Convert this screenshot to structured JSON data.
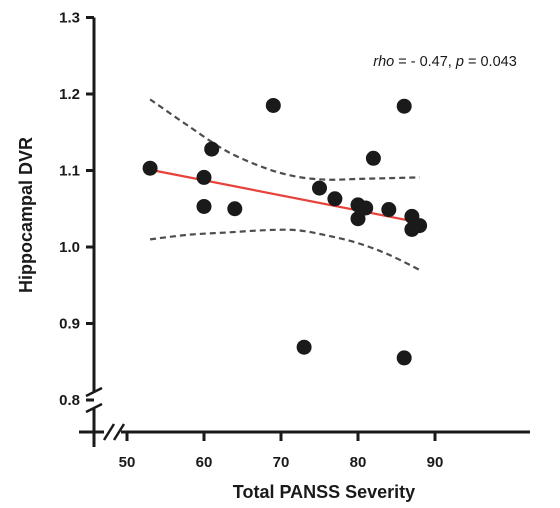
{
  "chart_data": {
    "type": "scatter",
    "title": "",
    "xlabel": "Total PANSS Severity",
    "ylabel": "Hippocampal DVR",
    "xlim": [
      47,
      95
    ],
    "ylim": [
      0.77,
      1.3
    ],
    "x_ticks": [
      "50",
      "60",
      "70",
      "80",
      "90"
    ],
    "y_ticks": [
      "0.8",
      "0.9",
      "1.0",
      "1.1",
      "1.2",
      "1.3"
    ],
    "axis_breaks": [
      "x",
      "y"
    ],
    "grid": false,
    "legend": "none",
    "annotation": {
      "rho_label": "rho",
      "rho_value": " = - 0.47, ",
      "p_label": "p",
      "p_value": " = 0.043"
    },
    "colors": {
      "points": "#1a1a1a",
      "regression": "#e8413a",
      "ci": "#4d4d4d",
      "axes": "#1a1a1a"
    },
    "points": [
      {
        "x": 53,
        "y": 1.103
      },
      {
        "x": 60,
        "y": 1.091
      },
      {
        "x": 60,
        "y": 1.053
      },
      {
        "x": 61,
        "y": 1.128
      },
      {
        "x": 64,
        "y": 1.05
      },
      {
        "x": 69,
        "y": 1.185
      },
      {
        "x": 73,
        "y": 0.869
      },
      {
        "x": 75,
        "y": 1.077
      },
      {
        "x": 77,
        "y": 1.063
      },
      {
        "x": 80,
        "y": 1.055
      },
      {
        "x": 80,
        "y": 1.037
      },
      {
        "x": 81,
        "y": 1.051
      },
      {
        "x": 82,
        "y": 1.116
      },
      {
        "x": 84,
        "y": 1.049
      },
      {
        "x": 86,
        "y": 1.184
      },
      {
        "x": 86,
        "y": 0.855
      },
      {
        "x": 87,
        "y": 1.04
      },
      {
        "x": 87,
        "y": 1.023
      },
      {
        "x": 88,
        "y": 1.028
      }
    ],
    "regression_line": {
      "x": [
        53,
        88
      ],
      "y": [
        1.101,
        1.032
      ]
    },
    "ci_upper": {
      "x": [
        53,
        58,
        63,
        68,
        72,
        76,
        80,
        84,
        88
      ],
      "y": [
        1.193,
        1.158,
        1.125,
        1.103,
        1.092,
        1.088,
        1.089,
        1.09,
        1.091
      ]
    },
    "ci_lower": {
      "x": [
        53,
        58,
        63,
        68,
        72,
        76,
        80,
        84,
        88
      ],
      "y": [
        1.01,
        1.016,
        1.019,
        1.022,
        1.022,
        1.015,
        1.005,
        0.99,
        0.97
      ]
    }
  }
}
